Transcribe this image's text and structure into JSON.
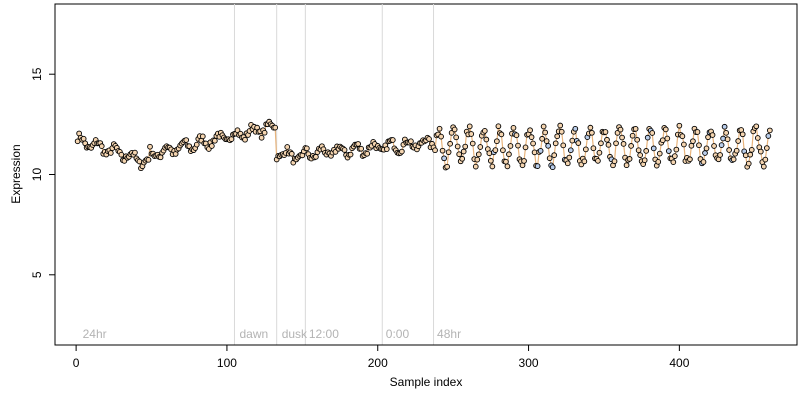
{
  "chart_data": {
    "type": "scatter",
    "title": "",
    "xlabel": "Sample index",
    "ylabel": "Expression",
    "xlim": [
      -14,
      478
    ],
    "ylim": [
      1.5,
      18.5
    ],
    "xticks": [
      0,
      100,
      200,
      300,
      400
    ],
    "yticks": [
      5,
      10,
      15
    ],
    "grid": false,
    "colors": {
      "point_fill_light": "#f5d5b0",
      "point_fill_blue": "#b9cdea",
      "point_edge": "#000000",
      "line_orange": "#e8b47c",
      "line_blue": "#8fb1de",
      "vline": "#d9d9d9",
      "annotation": "#b3b3b3"
    },
    "vlines": [
      105,
      133,
      152,
      203,
      237
    ],
    "annotations": [
      {
        "x": 3,
        "text": "24hr"
      },
      {
        "x": 107,
        "text": "dawn"
      },
      {
        "x": 135,
        "text": "dusk"
      },
      {
        "x": 153,
        "text": "12:00"
      },
      {
        "x": 204,
        "text": "0:00"
      },
      {
        "x": 238,
        "text": "48hr"
      }
    ],
    "segments": [
      {
        "x_start": 1,
        "x_end": 48,
        "y_start": 11.7,
        "y_end": 10.6
      },
      {
        "x_start": 49,
        "x_end": 132,
        "y_start": 11.0,
        "y_end": 12.4
      },
      {
        "x_start": 133,
        "x_end": 150,
        "y_start": 11.1,
        "y_end": 10.8
      },
      {
        "x_start": 151,
        "x_end": 237,
        "y_start": 11.0,
        "y_end": 11.6
      }
    ],
    "oscillating_region": {
      "x_start": 238,
      "x_end": 460,
      "center": 11.4,
      "amplitude": 0.85,
      "period": 10
    }
  }
}
